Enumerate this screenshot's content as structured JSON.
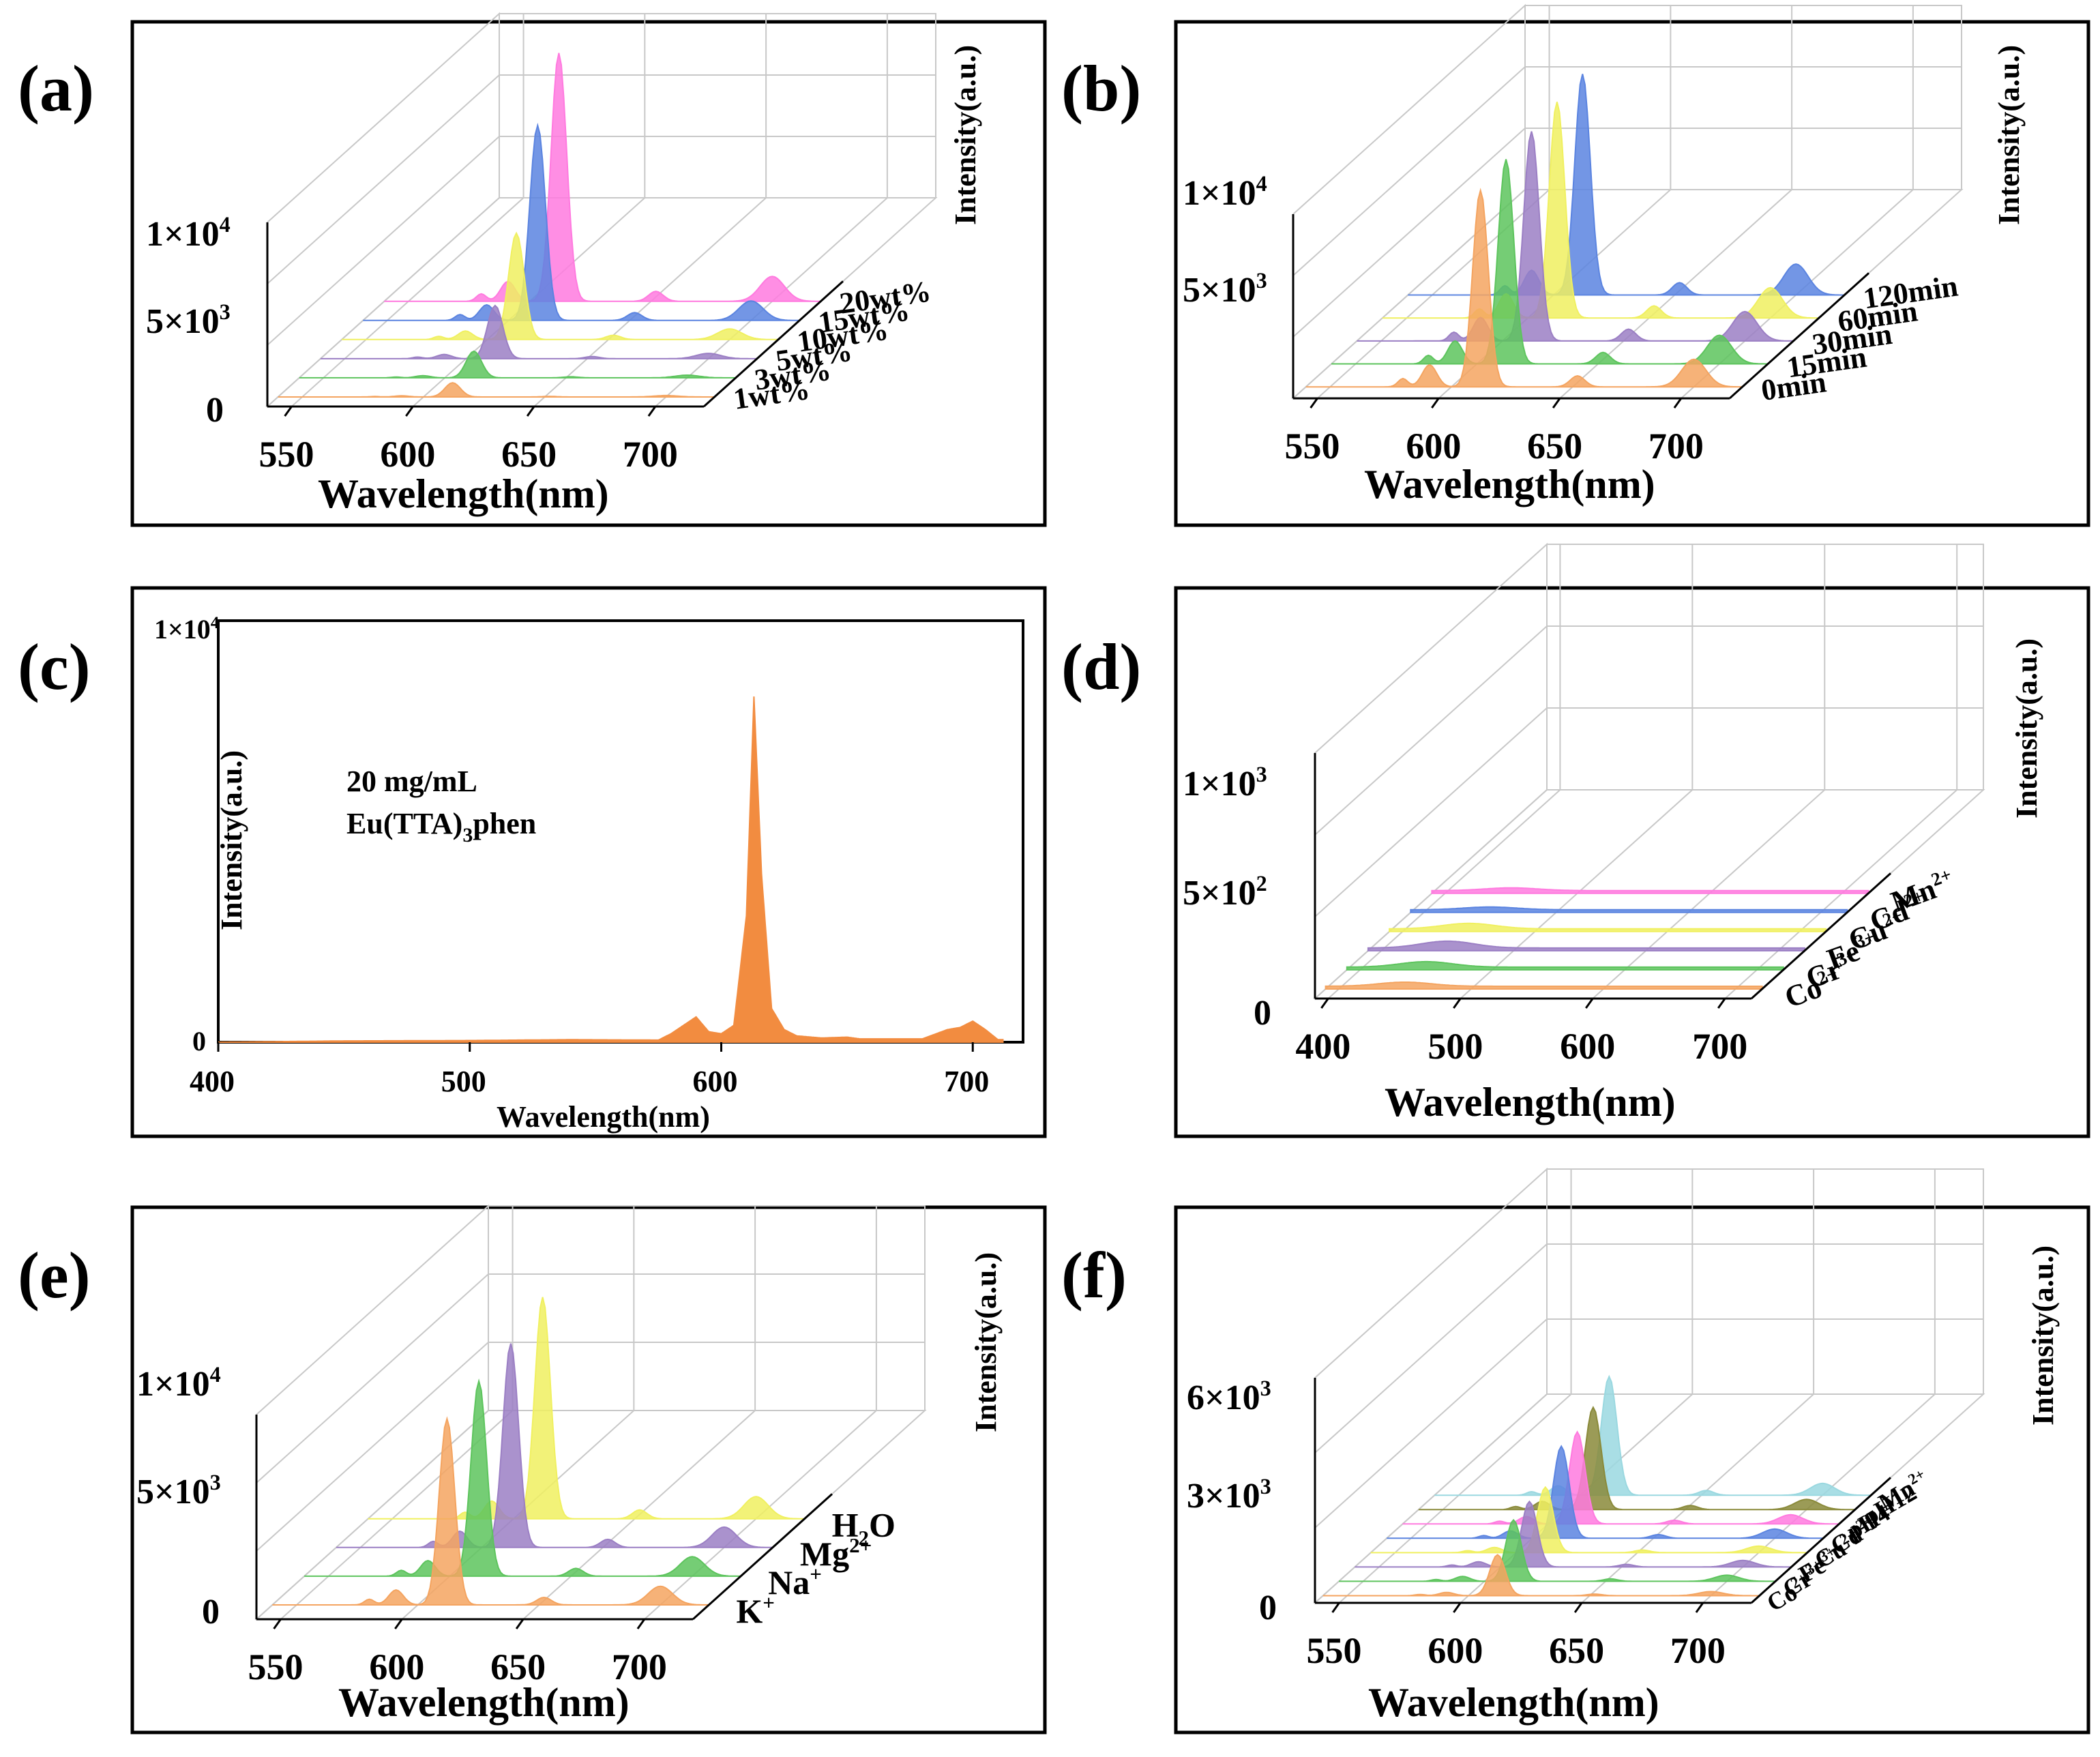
{
  "figure": {
    "panels": [
      {
        "id": "a",
        "panel_label": "(a)",
        "type": "waterfall3d",
        "xlabel": "Wavelength(nm)",
        "zlabel": "Intensity(a.u.)",
        "x_ticks": [
          "550",
          "600",
          "650",
          "700"
        ],
        "xlim": [
          540,
          720
        ],
        "z_ticks": [
          "1×10",
          "5×10",
          "0"
        ],
        "series_labels": [
          "1wt%",
          "3wt%",
          "5wt%",
          "10wt%",
          "15wt%",
          "20wt%"
        ],
        "colors": [
          "#f4a460",
          "#5dc45d",
          "#9b7fc4",
          "#f0f060",
          "#5b84e0",
          "#ff7adf"
        ]
      },
      {
        "id": "b",
        "panel_label": "(b)",
        "type": "waterfall3d",
        "xlabel": "Wavelength(nm)",
        "zlabel": "Intensity(a.u.)",
        "x_ticks": [
          "550",
          "600",
          "650",
          "700"
        ],
        "xlim": [
          540,
          720
        ],
        "z_ticks": [
          "1×10",
          "5×10"
        ],
        "series_labels": [
          "0min",
          "15min",
          "30min",
          "60min",
          "120min"
        ],
        "colors": [
          "#f4a460",
          "#5dc45d",
          "#9b7fc4",
          "#f0f060",
          "#5b84e0"
        ]
      },
      {
        "id": "c",
        "panel_label": "(c)",
        "type": "area",
        "xlabel": "Wavelength(nm)",
        "ylabel": "Intensity(a.u.)",
        "x_ticks": [
          "400",
          "500",
          "600",
          "700"
        ],
        "xlim": [
          400,
          720
        ],
        "y_ticks": [
          "1×10",
          "0"
        ],
        "ylim": [
          0,
          10000
        ],
        "annotation_line1": "20 mg/mL",
        "annotation_line2": "Eu(TTA)",
        "annotation_sub": "3",
        "annotation_tail": "phen",
        "color": "#f28c40"
      },
      {
        "id": "d",
        "panel_label": "(d)",
        "type": "waterfall3d",
        "xlabel": "Wavelength(nm)",
        "zlabel": "Intensity(a.u.)",
        "x_ticks": [
          "400",
          "500",
          "600",
          "700"
        ],
        "xlim": [
          390,
          720
        ],
        "z_ticks": [
          "1×10",
          "5×10",
          "0"
        ],
        "series_labels": [
          "Co",
          "Cr",
          "Fe",
          "Cu",
          "Cd",
          "Mn"
        ],
        "colors": [
          "#f4a460",
          "#5dc45d",
          "#9b7fc4",
          "#f0f060",
          "#5b84e0",
          "#ff7adf"
        ]
      },
      {
        "id": "e",
        "panel_label": "(e)",
        "type": "waterfall3d",
        "xlabel": "Wavelength(nm)",
        "zlabel": "Intensity(a.u.)",
        "x_ticks": [
          "550",
          "600",
          "650",
          "700"
        ],
        "xlim": [
          540,
          720
        ],
        "z_ticks": [
          "1×10",
          "5×10",
          "0"
        ],
        "series_labels": [
          "K",
          "Na",
          "Mg",
          "H"
        ],
        "colors": [
          "#f4a460",
          "#5dc45d",
          "#9b7fc4",
          "#f0f060"
        ]
      },
      {
        "id": "f",
        "panel_label": "(f)",
        "type": "waterfall3d",
        "xlabel": "Wavelength(nm)",
        "zlabel": "Intensity(a.u.)",
        "x_ticks": [
          "550",
          "600",
          "650",
          "700"
        ],
        "xlim": [
          540,
          720
        ],
        "z_ticks": [
          "6×10",
          "3×10",
          "0"
        ],
        "series_labels": [
          "Co",
          "Cr",
          "Fe",
          "Cu",
          "Cd",
          "pH4",
          "pH12",
          "Mn"
        ],
        "colors": [
          "#f4a460",
          "#5dc45d",
          "#9b7fc4",
          "#f0f060",
          "#5b84e0",
          "#ff7adf",
          "#8a8a3a",
          "#9ad8e0"
        ]
      }
    ]
  },
  "chart_data": [
    {
      "panel": "a",
      "type": "area",
      "title": "",
      "xlabel": "Wavelength(nm)",
      "ylabel": "Intensity(a.u.)",
      "xlim": [
        540,
        720
      ],
      "z_ticks_values": [
        0,
        5000,
        10000
      ],
      "series": [
        {
          "name": "1wt%",
          "peak_x": 612,
          "peak_intensity": 800
        },
        {
          "name": "3wt%",
          "peak_x": 612,
          "peak_intensity": 1500
        },
        {
          "name": "5wt%",
          "peak_x": 612,
          "peak_intensity": 3000
        },
        {
          "name": "10wt%",
          "peak_x": 612,
          "peak_intensity": 6000
        },
        {
          "name": "15wt%",
          "peak_x": 612,
          "peak_intensity": 11000
        },
        {
          "name": "20wt%",
          "peak_x": 612,
          "peak_intensity": 14000
        }
      ]
    },
    {
      "panel": "b",
      "type": "area",
      "title": "",
      "xlabel": "Wavelength(nm)",
      "ylabel": "Intensity(a.u.)",
      "xlim": [
        540,
        720
      ],
      "z_ticks_values": [
        5000,
        10000
      ],
      "series": [
        {
          "name": "0min",
          "peak_x": 612,
          "peak_intensity": 12000
        },
        {
          "name": "15min",
          "peak_x": 612,
          "peak_intensity": 12500
        },
        {
          "name": "30min",
          "peak_x": 612,
          "peak_intensity": 12800
        },
        {
          "name": "60min",
          "peak_x": 612,
          "peak_intensity": 13200
        },
        {
          "name": "120min",
          "peak_x": 612,
          "peak_intensity": 13500
        }
      ]
    },
    {
      "panel": "c",
      "type": "area",
      "title": "",
      "xlabel": "Wavelength(nm)",
      "ylabel": "Intensity(a.u.)",
      "xlim": [
        400,
        720
      ],
      "ylim": [
        0,
        10000
      ],
      "series": [
        {
          "name": "Eu(TTA)3phen 20 mg/mL",
          "x": [
            400,
            450,
            500,
            540,
            575,
            580,
            590,
            595,
            600,
            605,
            610,
            613,
            616,
            620,
            625,
            630,
            640,
            650,
            655,
            680,
            690,
            695,
            700,
            705,
            710
          ],
          "values": [
            0,
            30,
            40,
            60,
            50,
            200,
            600,
            250,
            200,
            400,
            3000,
            8200,
            4000,
            800,
            300,
            150,
            100,
            120,
            80,
            80,
            300,
            350,
            500,
            300,
            60
          ]
        }
      ]
    },
    {
      "panel": "d",
      "type": "area",
      "title": "",
      "xlabel": "Wavelength(nm)",
      "ylabel": "Intensity(a.u.)",
      "xlim": [
        390,
        720
      ],
      "z_ticks_values": [
        0,
        500,
        1000
      ],
      "series": [
        {
          "name": "Co2+",
          "peak_x": 450,
          "peak_intensity": 30
        },
        {
          "name": "Cr3+",
          "peak_x": 450,
          "peak_intensity": 40
        },
        {
          "name": "Fe3+",
          "peak_x": 450,
          "peak_intensity": 50
        },
        {
          "name": "Cu2+",
          "peak_x": 450,
          "peak_intensity": 40
        },
        {
          "name": "Cd2+",
          "peak_x": 450,
          "peak_intensity": 20
        },
        {
          "name": "Mn2+",
          "peak_x": 450,
          "peak_intensity": 20
        }
      ]
    },
    {
      "panel": "e",
      "type": "area",
      "title": "",
      "xlabel": "Wavelength(nm)",
      "ylabel": "Intensity(a.u.)",
      "xlim": [
        540,
        720
      ],
      "z_ticks_values": [
        0,
        5000,
        10000
      ],
      "series": [
        {
          "name": "K+",
          "peak_x": 612,
          "peak_intensity": 10500
        },
        {
          "name": "Na+",
          "peak_x": 612,
          "peak_intensity": 11000
        },
        {
          "name": "Mg2+",
          "peak_x": 612,
          "peak_intensity": 11500
        },
        {
          "name": "H2O",
          "peak_x": 612,
          "peak_intensity": 12500
        }
      ]
    },
    {
      "panel": "f",
      "type": "area",
      "title": "",
      "xlabel": "Wavelength(nm)",
      "ylabel": "Intensity(a.u.)",
      "xlim": [
        540,
        720
      ],
      "z_ticks_values": [
        0,
        3000,
        6000
      ],
      "series": [
        {
          "name": "Co2+",
          "peak_x": 612,
          "peak_intensity": 2000
        },
        {
          "name": "Cr3+",
          "peak_x": 612,
          "peak_intensity": 3000
        },
        {
          "name": "Fe3+",
          "peak_x": 612,
          "peak_intensity": 3200
        },
        {
          "name": "Cu2+",
          "peak_x": 612,
          "peak_intensity": 3200
        },
        {
          "name": "Cd2+",
          "peak_x": 612,
          "peak_intensity": 4500
        },
        {
          "name": "pH4",
          "peak_x": 612,
          "peak_intensity": 4500
        },
        {
          "name": "pH12",
          "peak_x": 612,
          "peak_intensity": 5000
        },
        {
          "name": "Mn2+",
          "peak_x": 612,
          "peak_intensity": 5800
        }
      ]
    }
  ]
}
